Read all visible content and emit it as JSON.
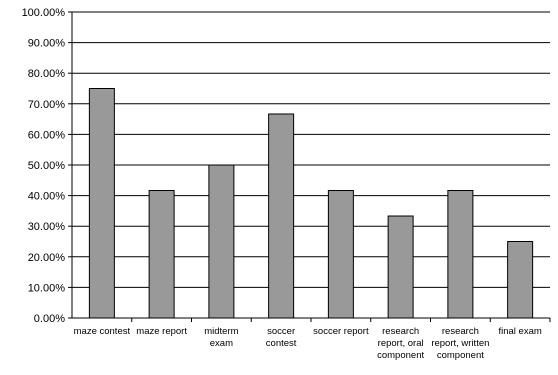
{
  "chart_data": {
    "type": "bar",
    "title": "",
    "xlabel": "",
    "ylabel": "",
    "categories": [
      [
        "maze contest"
      ],
      [
        "maze report"
      ],
      [
        "midterm",
        "exam"
      ],
      [
        "soccer",
        "contest"
      ],
      [
        "soccer report"
      ],
      [
        "research",
        "report, oral",
        "component"
      ],
      [
        "research",
        "report, written",
        "component"
      ],
      [
        "final exam"
      ]
    ],
    "values": [
      75.0,
      41.67,
      50.0,
      66.67,
      41.67,
      33.33,
      41.67,
      25.0
    ],
    "yticks": [
      "0.00%",
      "10.00%",
      "20.00%",
      "30.00%",
      "40.00%",
      "50.00%",
      "60.00%",
      "70.00%",
      "80.00%",
      "90.00%",
      "100.00%"
    ],
    "ylim": [
      0,
      100
    ],
    "grid": true,
    "legend": "none",
    "bar_color": "#999999",
    "bar_stroke": "#000000"
  }
}
